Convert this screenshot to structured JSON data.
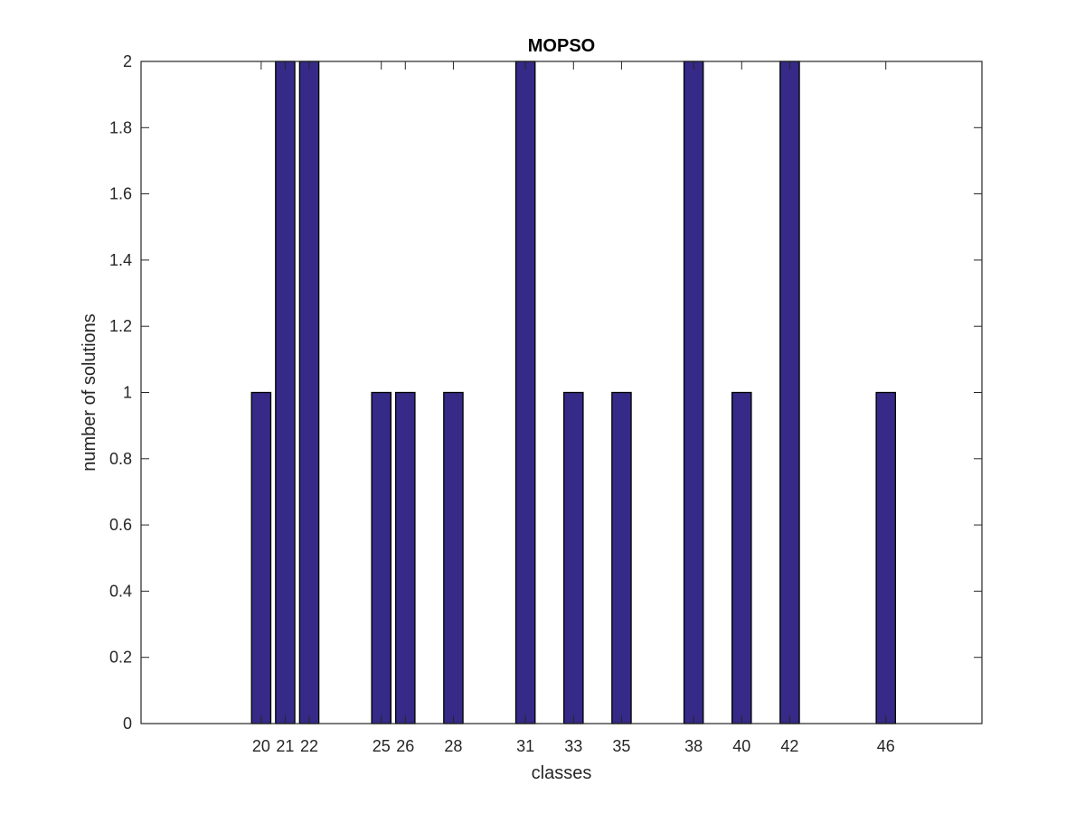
{
  "chart_data": {
    "type": "bar",
    "title": "MOPSO",
    "xlabel": "classes",
    "ylabel": "number of solutions",
    "categories": [
      "20",
      "21",
      "22",
      "25",
      "26",
      "28",
      "31",
      "33",
      "35",
      "38",
      "40",
      "42",
      "46"
    ],
    "x": [
      20,
      21,
      22,
      25,
      26,
      28,
      31,
      33,
      35,
      38,
      40,
      42,
      46
    ],
    "values": [
      1,
      2,
      2,
      1,
      1,
      1,
      2,
      1,
      1,
      2,
      1,
      2,
      1
    ],
    "xlim": [
      15,
      50
    ],
    "ylim": [
      0,
      2
    ],
    "yticks": [
      "0",
      "0.2",
      "0.4",
      "0.6",
      "0.8",
      "1",
      "1.2",
      "1.4",
      "1.6",
      "1.8",
      "2"
    ],
    "grid": false,
    "legend": "none",
    "colors": {
      "bar_fill": "#352a87",
      "bar_edge": "#000000",
      "axes": "#262626"
    }
  }
}
